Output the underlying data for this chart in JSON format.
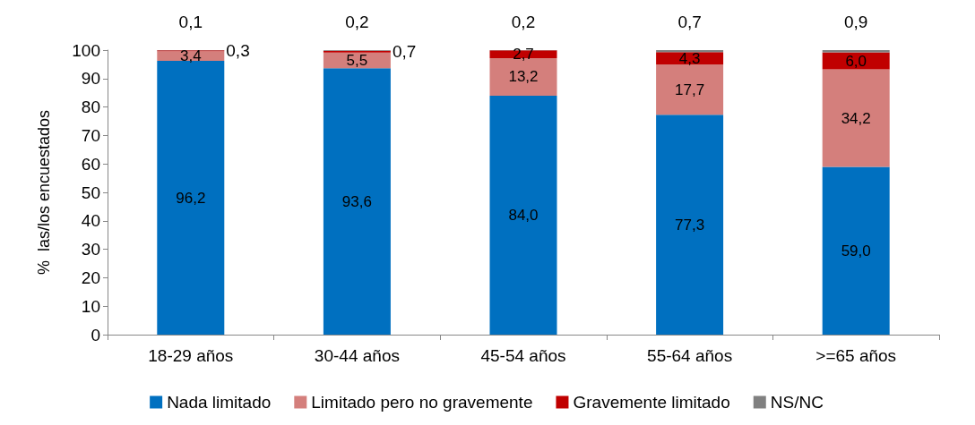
{
  "chart_data": {
    "type": "bar",
    "stacked": true,
    "ylabel": "%  las/los encuestados",
    "categories": [
      "18-29 años",
      "30-44 años",
      "45-54 años",
      "55-64 años",
      ">=65 años"
    ],
    "series": [
      {
        "name": "Nada limitado",
        "color": "#0070c0",
        "values": [
          96.2,
          93.6,
          84.0,
          77.3,
          59.0
        ],
        "value_labels": [
          "96,2",
          "93,6",
          "84,0",
          "77,3",
          "59,0"
        ]
      },
      {
        "name": "Limitado pero no gravemente",
        "color": "#d47f7c",
        "values": [
          3.4,
          5.5,
          13.2,
          17.7,
          34.2
        ],
        "value_labels": [
          "3,4",
          "5,5",
          "13,2",
          "17,7",
          "34,2"
        ]
      },
      {
        "name": "Gravemente limitado",
        "color": "#c00000",
        "values": [
          0.3,
          0.7,
          2.7,
          4.3,
          6.0
        ],
        "value_labels": [
          "0,3",
          "0,7",
          "2,7",
          "4,3",
          "6,0"
        ]
      },
      {
        "name": "NS/NC",
        "color": "#808080",
        "values": [
          0.1,
          0.2,
          0.2,
          0.7,
          0.9
        ],
        "value_labels": [
          "0,1",
          "0,2",
          "0,2",
          "0,7",
          "0,9"
        ]
      }
    ],
    "ylim": [
      0,
      100
    ],
    "yticks": [
      0,
      10,
      20,
      30,
      40,
      50,
      60,
      70,
      80,
      90,
      100
    ],
    "grid": false,
    "legend": "bottom"
  }
}
